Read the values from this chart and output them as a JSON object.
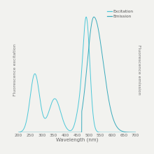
{
  "title": "",
  "xlabel": "Wavelength (nm)",
  "ylabel_left": "Fluorescence excitation",
  "ylabel_right": "Fluorescence emission",
  "xlim": [
    200,
    700
  ],
  "ylim": [
    0,
    1.08
  ],
  "xticks": [
    200,
    250,
    300,
    350,
    400,
    450,
    500,
    550,
    600,
    650,
    700
  ],
  "background_color": "#f2f2ef",
  "grid_color": "#ffffff",
  "excitation_color": "#4dc8d8",
  "emission_color": "#3aabbc",
  "legend_labels": [
    "Excitation",
    "Emission"
  ],
  "xlabel_fontsize": 5,
  "ylabel_fontsize": 4.5,
  "tick_fontsize": 4.2,
  "legend_fontsize": 4.2,
  "linewidth": 0.7
}
